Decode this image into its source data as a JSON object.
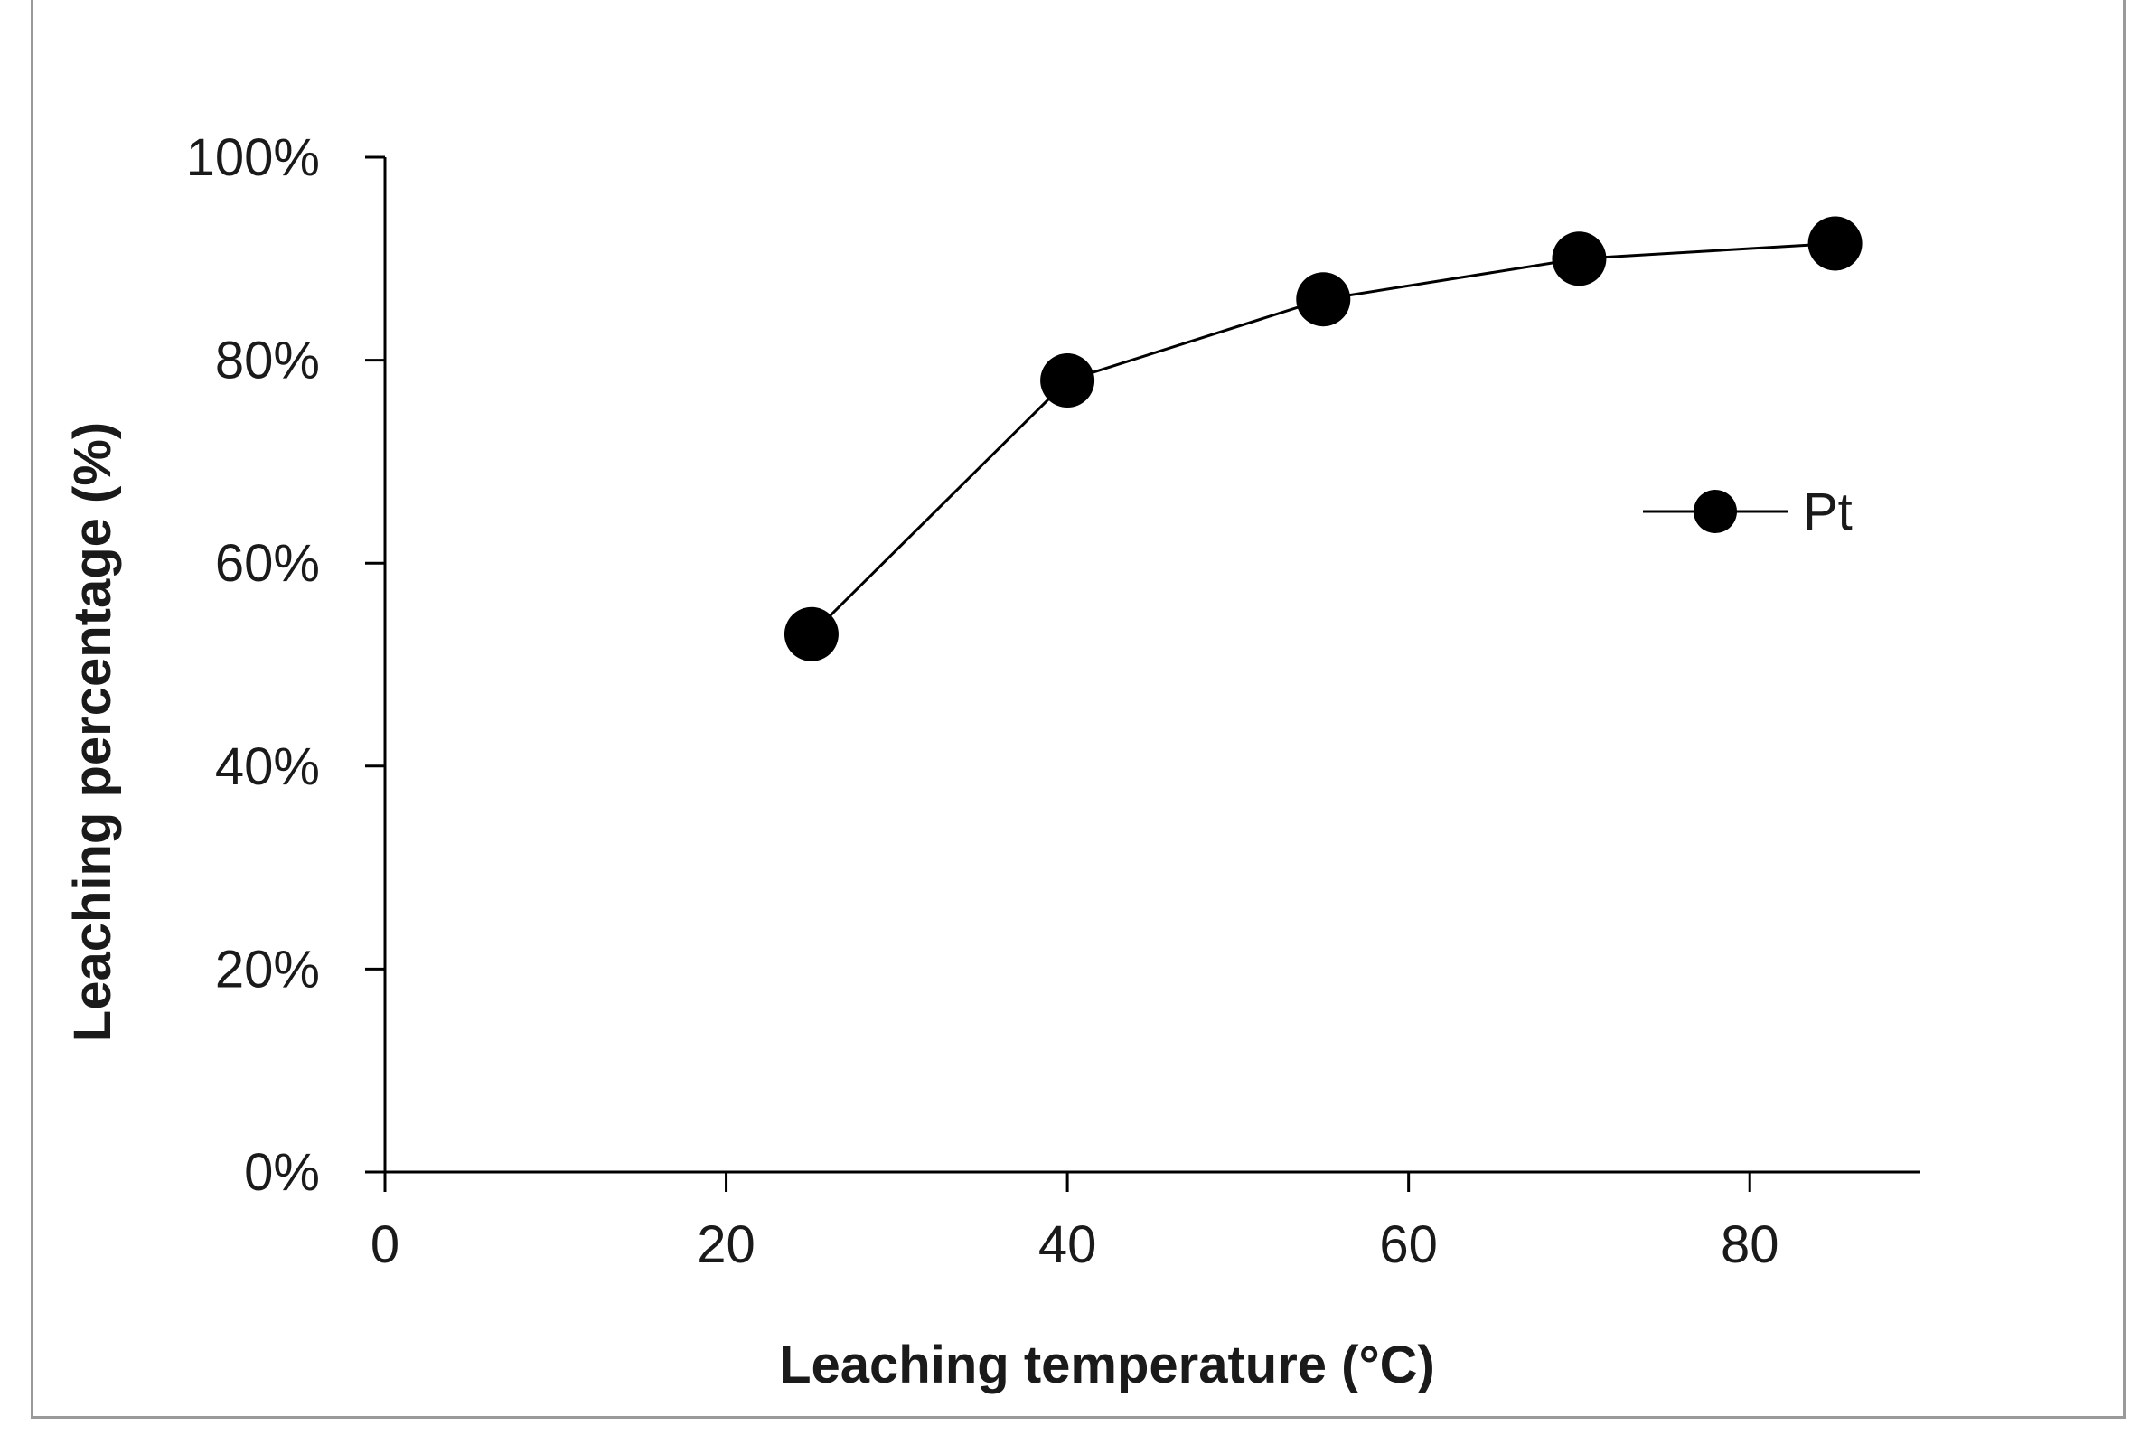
{
  "chart_data": {
    "type": "line",
    "title": "",
    "xlabel": "Leaching temperature (°C)",
    "ylabel": "Leaching percentage (%)",
    "xlim": [
      0,
      90
    ],
    "ylim": [
      0,
      100
    ],
    "x_ticks": [
      0,
      20,
      40,
      60,
      80
    ],
    "x_tick_labels": [
      "0",
      "20",
      "40",
      "60",
      "80"
    ],
    "y_ticks": [
      0,
      20,
      40,
      60,
      80,
      100
    ],
    "y_tick_labels": [
      "0%",
      "20%",
      "40%",
      "60%",
      "80%",
      "100%"
    ],
    "grid": false,
    "legend_position": "right",
    "series": [
      {
        "name": "Pt",
        "color": "#000000",
        "marker": "circle",
        "x": [
          25,
          40,
          55,
          70,
          85
        ],
        "y": [
          53,
          78,
          86,
          90,
          91.5
        ]
      }
    ]
  }
}
